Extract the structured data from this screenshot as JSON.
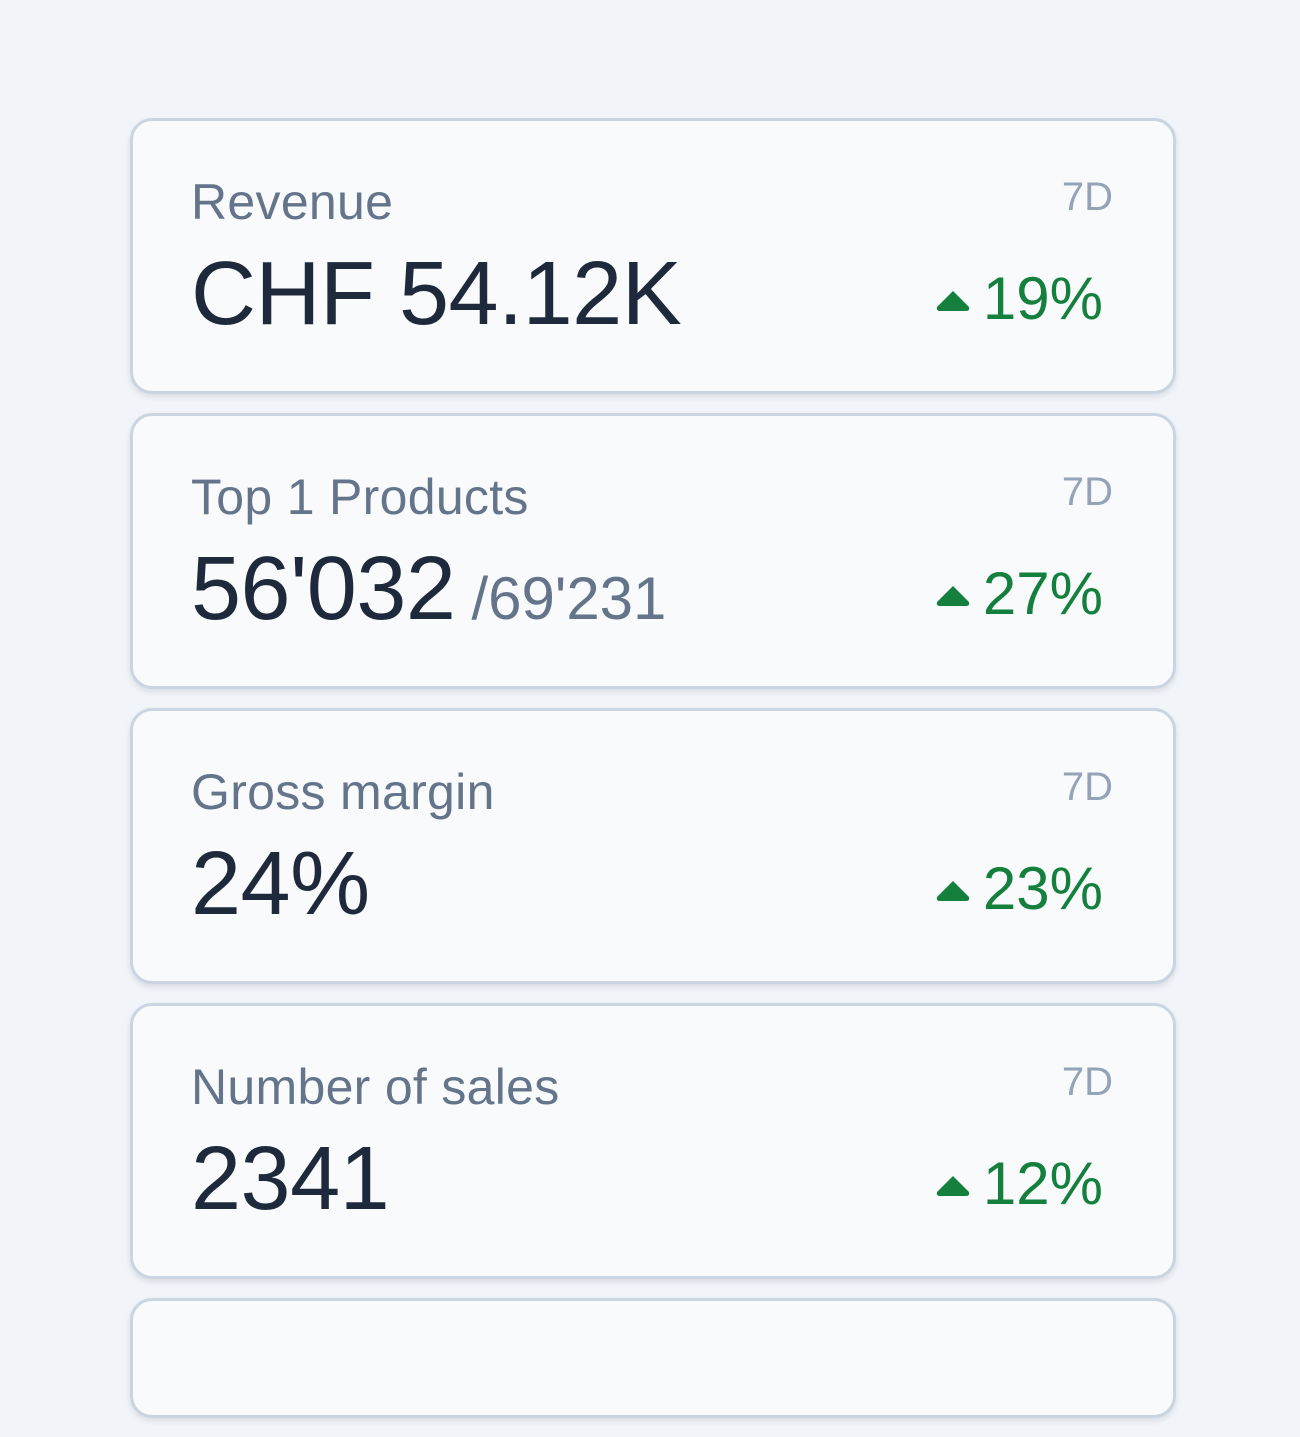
{
  "kpis": [
    {
      "label": "Revenue",
      "period": "7D",
      "value": "CHF 54.12K",
      "subvalue": "",
      "change": "19%",
      "trend_icon": "trend-up-icon"
    },
    {
      "label": "Top 1 Products",
      "period": "7D",
      "value": "56'032",
      "subvalue": "/69'231",
      "change": "27%",
      "trend_icon": "trend-up-icon"
    },
    {
      "label": "Gross margin",
      "period": "7D",
      "value": "24%",
      "subvalue": "",
      "change": "23%",
      "trend_icon": "trend-up-icon"
    },
    {
      "label": "Number of sales",
      "period": "7D",
      "value": "2341",
      "subvalue": "",
      "change": "12%",
      "trend_icon": "trend-up-icon"
    }
  ],
  "colors": {
    "background": "#f1f5f9",
    "card": "#f8fafc",
    "card_border": "#cbd5e1",
    "label": "#64748b",
    "period": "#94a3b8",
    "value": "#1e293b",
    "positive": "#15803d"
  }
}
